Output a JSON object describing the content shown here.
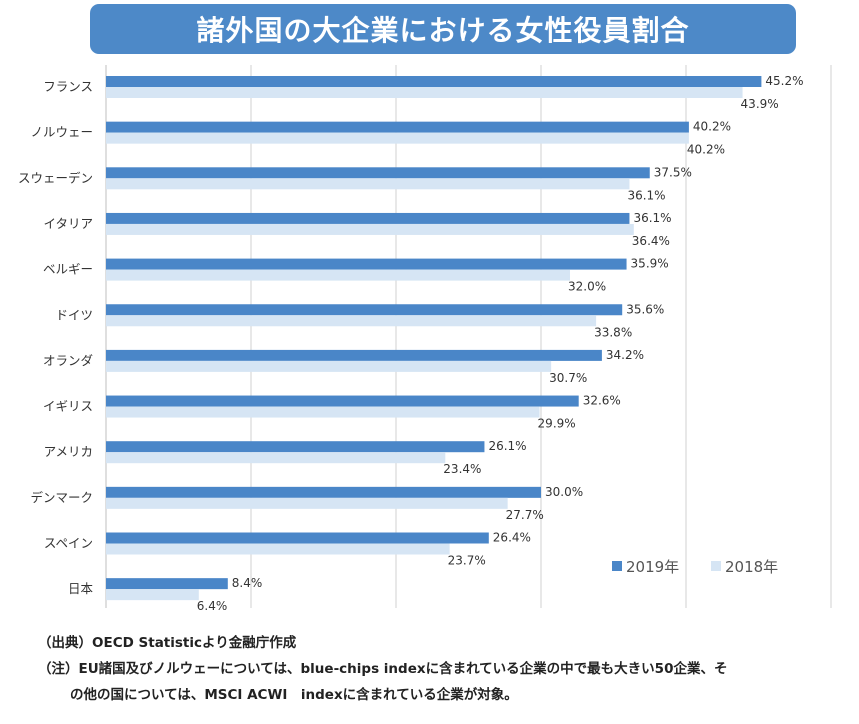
{
  "title": "諸外国の大企業における女性役員割合",
  "chart_data": {
    "type": "bar",
    "orientation": "horizontal",
    "title": "諸外国の大企業における女性役員割合",
    "categories": [
      "フランス",
      "ノルウェー",
      "スウェーデン",
      "イタリア",
      "ベルギー",
      "ドイツ",
      "オランダ",
      "イギリス",
      "アメリカ",
      "デンマーク",
      "スペイン",
      "日本"
    ],
    "series": [
      {
        "name": "2019年",
        "color": "#4a86c8",
        "values": [
          45.2,
          40.2,
          37.5,
          36.1,
          35.9,
          35.6,
          34.2,
          32.6,
          26.1,
          30.0,
          26.4,
          8.4
        ],
        "labels": [
          "45.2%",
          "40.2%",
          "37.5%",
          "36.1%",
          "35.9%",
          "35.6%",
          "34.2%",
          "32.6%",
          "26.1%",
          "30.0%",
          "26.4%",
          "8.4%"
        ]
      },
      {
        "name": "2018年",
        "color": "#d6e5f4",
        "values": [
          43.9,
          40.2,
          36.1,
          36.4,
          32.0,
          33.8,
          30.7,
          29.9,
          23.4,
          27.7,
          23.7,
          6.4
        ],
        "labels": [
          "43.9%",
          "40.2%",
          "36.1%",
          "36.4%",
          "32.0%",
          "33.8%",
          "30.7%",
          "29.9%",
          "23.4%",
          "27.7%",
          "23.7%",
          "6.4%"
        ]
      }
    ],
    "xlim": [
      0,
      50
    ],
    "grid": true,
    "legend": "bottom-right"
  },
  "notes": {
    "source": "（出典）OECD Statisticより金融庁作成",
    "note_line1": "（注）EU諸国及びノルウェーについては、blue-chips indexに含まれている企業の中で最も大きい50企業、そ",
    "note_line2": "の他の国については、MSCI ACWI　indexに含まれている企業が対象。"
  }
}
